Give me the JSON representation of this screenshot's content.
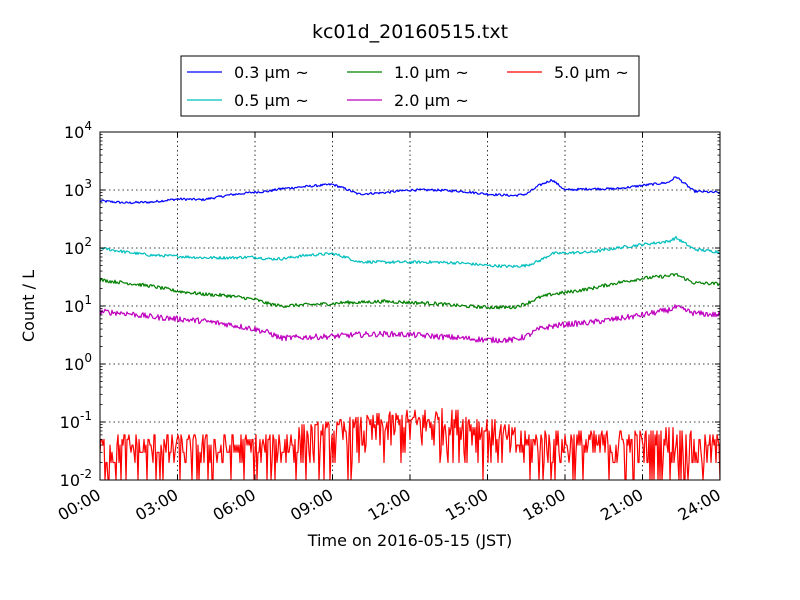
{
  "chart_data": {
    "type": "line",
    "title": "kc01d_20160515.txt",
    "xlabel": "Time on 2016-05-15 (JST)",
    "ylabel": "Count / L",
    "yscale": "log",
    "ylim_exponents": [
      -2,
      4
    ],
    "xlim": [
      "00:00",
      "24:00"
    ],
    "x_ticks": [
      "00:00",
      "03:00",
      "06:00",
      "09:00",
      "12:00",
      "15:00",
      "18:00",
      "21:00",
      "24:00"
    ],
    "y_ticks": [
      {
        "base": "10",
        "exp": "-2"
      },
      {
        "base": "10",
        "exp": "-1"
      },
      {
        "base": "10",
        "exp": "0"
      },
      {
        "base": "10",
        "exp": "1"
      },
      {
        "base": "10",
        "exp": "2"
      },
      {
        "base": "10",
        "exp": "3"
      },
      {
        "base": "10",
        "exp": "4"
      }
    ],
    "grid": true,
    "legend_position": "top-center",
    "x_hours": [
      0,
      1,
      2,
      3,
      4,
      5,
      6,
      6.5,
      7,
      8,
      9,
      9.5,
      10,
      11,
      12,
      13,
      14,
      15,
      16,
      16.5,
      17,
      17.5,
      18,
      19,
      20,
      21,
      22,
      22.3,
      23,
      24
    ],
    "series": [
      {
        "name": "0.3 μm ~",
        "color": "#0000ff",
        "noise": 0.02,
        "values": [
          650,
          600,
          620,
          700,
          680,
          820,
          920,
          950,
          1050,
          1150,
          1250,
          1050,
          850,
          900,
          1000,
          1000,
          950,
          850,
          800,
          850,
          1200,
          1500,
          1000,
          1050,
          1050,
          1200,
          1350,
          1700,
          950,
          900
        ]
      },
      {
        "name": "0.5 μm ~",
        "color": "#00bfbf",
        "noise": 0.025,
        "values": [
          100,
          85,
          75,
          72,
          68,
          68,
          70,
          65,
          65,
          75,
          80,
          70,
          58,
          57,
          57,
          57,
          55,
          50,
          48,
          50,
          60,
          80,
          82,
          85,
          100,
          115,
          130,
          150,
          95,
          85
        ]
      },
      {
        "name": "1.0 μm ~",
        "color": "#008000",
        "noise": 0.03,
        "values": [
          28,
          25,
          22,
          18,
          16,
          15,
          13,
          11,
          10,
          10.5,
          11,
          11.5,
          11.5,
          12,
          11.5,
          11,
          10,
          9.5,
          9.5,
          11,
          14,
          16,
          17,
          20,
          25,
          30,
          33,
          35,
          25,
          24
        ]
      },
      {
        "name": "2.0 μm ~",
        "color": "#bf00bf",
        "noise": 0.05,
        "values": [
          8,
          7.5,
          6.5,
          6,
          5.5,
          4.8,
          4,
          3.5,
          2.8,
          2.9,
          3,
          3.1,
          3.2,
          3.3,
          3.2,
          3,
          2.8,
          2.6,
          2.6,
          3,
          4,
          4.5,
          4.8,
          5.2,
          6,
          7,
          8.5,
          9.5,
          7.5,
          7
        ]
      },
      {
        "name": "5.0 μm ~",
        "color": "#ff0000",
        "noise": 0.0,
        "sparse": true,
        "values": [
          0.03,
          0.03,
          0.03,
          0.03,
          0.03,
          0.03,
          0.03,
          0.03,
          0.035,
          0.045,
          0.05,
          0.055,
          0.06,
          0.07,
          0.08,
          0.085,
          0.08,
          0.06,
          0.04,
          0.035,
          0.035,
          0.035,
          0.035,
          0.035,
          0.035,
          0.035,
          0.04,
          0.04,
          0.03,
          0.03
        ]
      }
    ]
  }
}
